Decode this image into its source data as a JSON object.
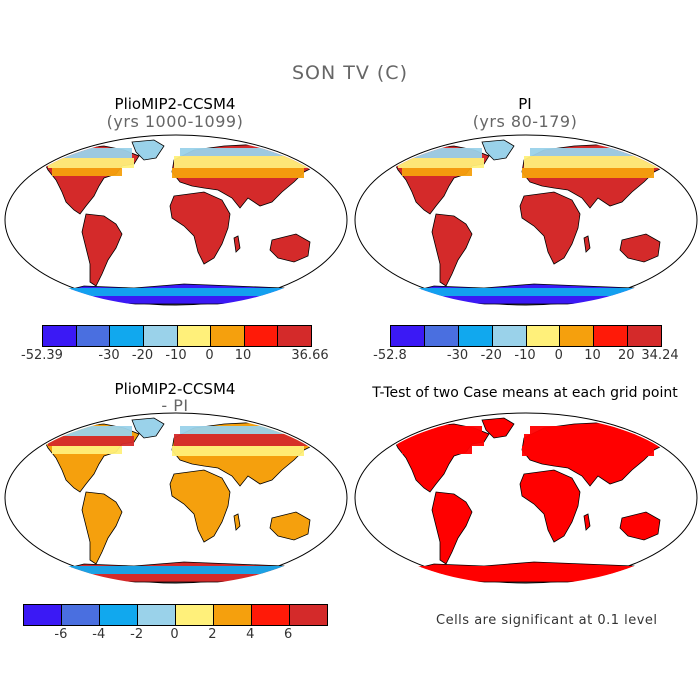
{
  "figure": {
    "title": "SON TV (C)"
  },
  "panels": [
    {
      "title": "PlioMIP2-CCSM4",
      "subtitle": "(yrs 1000-1099)",
      "colorbar": {
        "colors": [
          "#3b19f5",
          "#4a6fe0",
          "#11a8ee",
          "#9ad2ea",
          "#fff07a",
          "#f5a00d",
          "#ff1a08",
          "#d42a2a"
        ],
        "labels": [
          "-52.39",
          "-30",
          "-20",
          "-10",
          "0",
          "10",
          "36.66"
        ]
      }
    },
    {
      "title": "PI",
      "subtitle": "(yrs 80-179)",
      "colorbar": {
        "colors": [
          "#3b19f5",
          "#4a6fe0",
          "#11a8ee",
          "#9ad2ea",
          "#fff07a",
          "#f5a00d",
          "#ff1a08",
          "#d42a2a"
        ],
        "labels": [
          "-52.8",
          "-30",
          "-20",
          "-10",
          "0",
          "10",
          "20",
          "34.24"
        ]
      }
    },
    {
      "title": "PlioMIP2-CCSM4",
      "subtitle": "- PI",
      "colorbar": {
        "colors": [
          "#3b19f5",
          "#4a6fe0",
          "#11a8ee",
          "#9ad2ea",
          "#fff07a",
          "#f5a00d",
          "#ff1a08",
          "#d42a2a"
        ],
        "labels": [
          "-6",
          "-4",
          "-2",
          "0",
          "2",
          "4",
          "6"
        ]
      }
    },
    {
      "title": "T-Test of two Case means at each grid point",
      "note": "Cells are significant at 0.1 level"
    }
  ],
  "colors": {
    "ocean": "#ffffff",
    "outline": "#000000",
    "significance": "#ff0000"
  }
}
